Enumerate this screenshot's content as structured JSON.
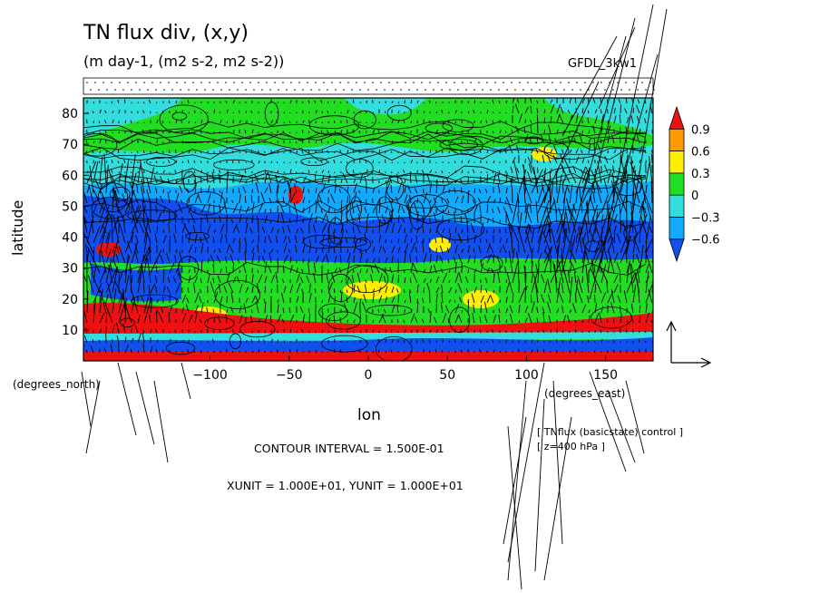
{
  "title": "TN flux div, (x,y)",
  "subtitle": "(m day-1, (m2 s-2, m2 s-2))",
  "model_label": "GFDL_3kw1",
  "ci_label": "CONTOUR INTERVAL = 1.500E-01",
  "unit_label": "XUNIT = 1.000E+01, YUNIT = 1.000E+01",
  "vector_note_1": "[ TNflux (basicstate) control ]",
  "vector_note_2": "[ z=400 hPa ]",
  "colors": {
    "red": "#ee1111",
    "orange": "#ff9900",
    "yellow": "#ffee00",
    "green": "#22dd22",
    "cyan": "#33dddd",
    "lightblue": "#11aaff",
    "blue": "#1150ee",
    "darkblue": "#1133bb"
  },
  "chart_data": {
    "type": "heatmap",
    "xlabel": "lon",
    "ylabel": "latitude",
    "x_unit_label": "(degrees_east)",
    "y_unit_label": "(degrees_north)",
    "xlim": [
      -180,
      180
    ],
    "ylim": [
      0,
      85
    ],
    "x_ticks": [
      -100,
      -50,
      0,
      50,
      100,
      150
    ],
    "x_tick_labels": [
      "−100",
      "−50",
      "0",
      "50",
      "100",
      "150"
    ],
    "y_ticks": [
      10,
      20,
      30,
      40,
      50,
      60,
      70,
      80
    ],
    "y_tick_labels": [
      "10",
      "20",
      "30",
      "40",
      "50",
      "60",
      "70",
      "80"
    ],
    "colorbar": {
      "levels": [
        -0.9,
        -0.6,
        -0.3,
        0,
        0.3,
        0.6,
        0.9,
        1.2
      ],
      "labels": [
        "0.9",
        "0.6",
        "0.3",
        "0",
        "−0.3",
        "−0.6"
      ],
      "label_values": [
        0.9,
        0.6,
        0.3,
        0,
        -0.3,
        -0.6
      ],
      "colors": [
        "#1150ee",
        "#11aaff",
        "#33dddd",
        "#22dd22",
        "#ffee00",
        "#ff9900",
        "#ee1111"
      ]
    },
    "contour_interval": 0.15,
    "field_bands_by_latitude": [
      {
        "lat_range": [
          0,
          3
        ],
        "category": "red"
      },
      {
        "lat_range": [
          3,
          7
        ],
        "category": "blue"
      },
      {
        "lat_range": [
          7,
          11
        ],
        "category": "red"
      },
      {
        "lat_range": [
          11,
          17
        ],
        "category": "red-mixed"
      },
      {
        "lat_range": [
          17,
          35
        ],
        "category": "green"
      },
      {
        "lat_range": [
          35,
          56
        ],
        "category": "blue-cyan"
      },
      {
        "lat_range": [
          56,
          68
        ],
        "category": "cyan"
      },
      {
        "lat_range": [
          68,
          85
        ],
        "category": "green"
      }
    ]
  }
}
